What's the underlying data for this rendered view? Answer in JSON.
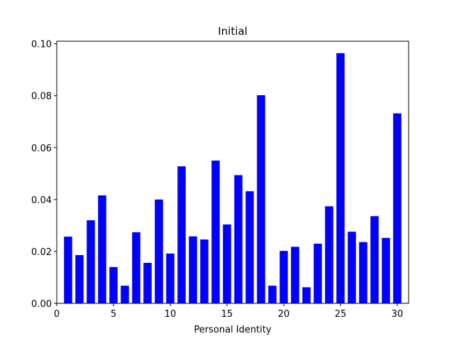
{
  "chart_data": {
    "type": "bar",
    "title": "Initial",
    "xlabel": "Personal Identity",
    "ylabel": "",
    "x": [
      1,
      2,
      3,
      4,
      5,
      6,
      7,
      8,
      9,
      10,
      11,
      12,
      13,
      14,
      15,
      16,
      17,
      18,
      19,
      20,
      21,
      22,
      23,
      24,
      25,
      26,
      27,
      28,
      29,
      30
    ],
    "values": [
      0.0257,
      0.0186,
      0.032,
      0.0416,
      0.014,
      0.0068,
      0.0274,
      0.0156,
      0.04,
      0.0192,
      0.0528,
      0.0258,
      0.0246,
      0.055,
      0.0304,
      0.0494,
      0.0432,
      0.0802,
      0.0068,
      0.0202,
      0.0218,
      0.0062,
      0.023,
      0.0374,
      0.0964,
      0.0276,
      0.0236,
      0.0336,
      0.0252,
      0.0732
    ],
    "xlim": [
      0,
      31
    ],
    "ylim": [
      0,
      0.101
    ],
    "xticks": [
      0,
      5,
      10,
      15,
      20,
      25,
      30
    ],
    "xtick_labels": [
      "0",
      "5",
      "10",
      "15",
      "20",
      "25",
      "30"
    ],
    "yticks": [
      0,
      0.02,
      0.04,
      0.06,
      0.08,
      0.1
    ],
    "ytick_labels": [
      "0.00",
      "0.02",
      "0.04",
      "0.06",
      "0.08",
      "0.10"
    ],
    "bar_color": "#0000ff",
    "grid": false
  }
}
